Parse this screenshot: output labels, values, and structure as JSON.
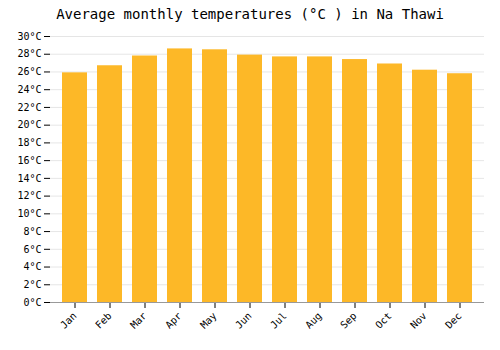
{
  "chart_data": {
    "type": "bar",
    "title": "Average monthly temperatures (°C ) in Na Thawi",
    "categories": [
      "Jan",
      "Feb",
      "Mar",
      "Apr",
      "May",
      "Jun",
      "Jul",
      "Aug",
      "Sep",
      "Oct",
      "Nov",
      "Dec"
    ],
    "values": [
      25.9,
      26.7,
      27.8,
      28.6,
      28.5,
      27.9,
      27.7,
      27.7,
      27.4,
      26.9,
      26.2,
      25.8
    ],
    "color": "#FDB827",
    "ylim": [
      0,
      30
    ],
    "yticks": [
      {
        "value": 0,
        "label": "0°C"
      },
      {
        "value": 2,
        "label": "2°C"
      },
      {
        "value": 4,
        "label": "4°C"
      },
      {
        "value": 6,
        "label": "6°C"
      },
      {
        "value": 8,
        "label": "8°C"
      },
      {
        "value": 10,
        "label": "10°C"
      },
      {
        "value": 12,
        "label": "12°C"
      },
      {
        "value": 14,
        "label": "14°C"
      },
      {
        "value": 16,
        "label": "16°C"
      },
      {
        "value": 18,
        "label": "18°C"
      },
      {
        "value": 20,
        "label": "20°C"
      },
      {
        "value": 22,
        "label": "22°C"
      },
      {
        "value": 24,
        "label": "24°C"
      },
      {
        "value": 26,
        "label": "26°C"
      },
      {
        "value": 28,
        "label": "28°C"
      },
      {
        "value": 30,
        "label": "30°C"
      }
    ],
    "grid": true
  }
}
